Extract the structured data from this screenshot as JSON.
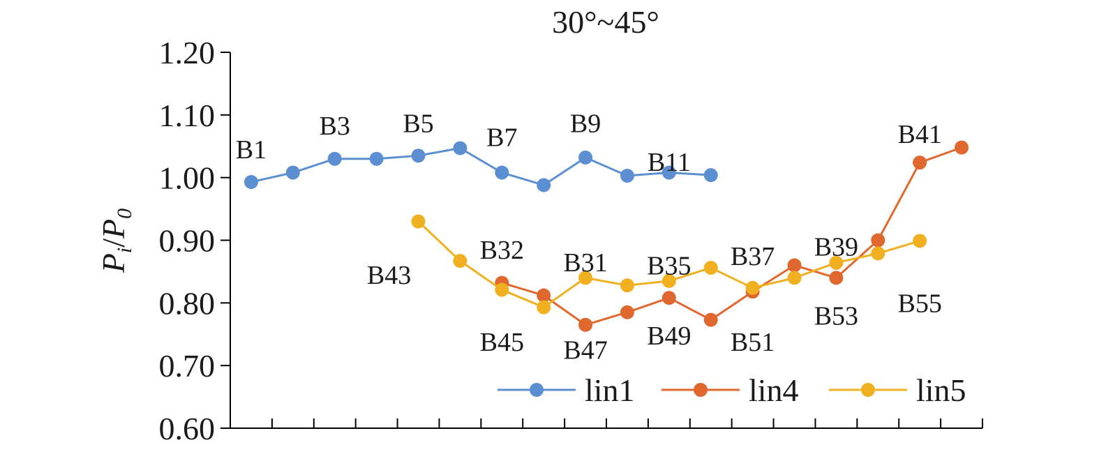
{
  "chart_data": {
    "type": "line",
    "title": "30°~45°",
    "ylabel": {
      "main": "P",
      "sub": "i",
      "slash": "/",
      "main2": "P",
      "sub2": "0"
    },
    "ylim": [
      0.6,
      1.2
    ],
    "yticks": [
      "0.60",
      "0.70",
      "0.80",
      "0.90",
      "1.00",
      "1.10",
      "1.20"
    ],
    "ytick_values": [
      0.6,
      0.7,
      0.8,
      0.9,
      1.0,
      1.1,
      1.2
    ],
    "xlim": [
      0,
      18
    ],
    "grid": false,
    "legend_position": "bottom-right",
    "series": [
      {
        "name": "lin1",
        "color": "#5b8fd1",
        "points": [
          {
            "x": 0.5,
            "y": 0.993
          },
          {
            "x": 1.5,
            "y": 1.008
          },
          {
            "x": 2.5,
            "y": 1.03
          },
          {
            "x": 3.5,
            "y": 1.03
          },
          {
            "x": 4.5,
            "y": 1.035
          },
          {
            "x": 5.5,
            "y": 1.047
          },
          {
            "x": 6.5,
            "y": 1.008
          },
          {
            "x": 7.5,
            "y": 0.988
          },
          {
            "x": 8.5,
            "y": 1.032
          },
          {
            "x": 9.5,
            "y": 1.003
          },
          {
            "x": 10.5,
            "y": 1.008
          },
          {
            "x": 11.5,
            "y": 1.004
          }
        ]
      },
      {
        "name": "lin4",
        "color": "#e0672e",
        "points": [
          {
            "x": 6.5,
            "y": 0.832
          },
          {
            "x": 7.5,
            "y": 0.812
          },
          {
            "x": 8.5,
            "y": 0.765
          },
          {
            "x": 9.5,
            "y": 0.785
          },
          {
            "x": 10.5,
            "y": 0.808
          },
          {
            "x": 11.5,
            "y": 0.773
          },
          {
            "x": 12.5,
            "y": 0.818
          },
          {
            "x": 13.5,
            "y": 0.86
          },
          {
            "x": 14.5,
            "y": 0.84
          },
          {
            "x": 15.5,
            "y": 0.9
          },
          {
            "x": 16.5,
            "y": 1.024
          },
          {
            "x": 17.5,
            "y": 1.048
          }
        ]
      },
      {
        "name": "lin5",
        "color": "#f0b020",
        "points": [
          {
            "x": 4.5,
            "y": 0.93
          },
          {
            "x": 5.5,
            "y": 0.867
          },
          {
            "x": 6.5,
            "y": 0.821
          },
          {
            "x": 7.5,
            "y": 0.793
          },
          {
            "x": 8.5,
            "y": 0.84
          },
          {
            "x": 9.5,
            "y": 0.828
          },
          {
            "x": 10.5,
            "y": 0.835
          },
          {
            "x": 11.5,
            "y": 0.856
          },
          {
            "x": 12.5,
            "y": 0.824
          },
          {
            "x": 13.5,
            "y": 0.84
          },
          {
            "x": 14.5,
            "y": 0.864
          },
          {
            "x": 15.5,
            "y": 0.879
          },
          {
            "x": 16.5,
            "y": 0.899
          }
        ]
      }
    ],
    "annotations": [
      {
        "text": "B1",
        "x": 0.5,
        "y": 1.045
      },
      {
        "text": "B3",
        "x": 2.5,
        "y": 1.083
      },
      {
        "text": "B5",
        "x": 4.5,
        "y": 1.087
      },
      {
        "text": "B7",
        "x": 6.5,
        "y": 1.065
      },
      {
        "text": "B9",
        "x": 8.5,
        "y": 1.087
      },
      {
        "text": "B11",
        "x": 10.5,
        "y": 1.025
      },
      {
        "text": "B41",
        "x": 16.5,
        "y": 1.07
      },
      {
        "text": "B43",
        "x": 3.8,
        "y": 0.845
      },
      {
        "text": "B32",
        "x": 6.5,
        "y": 0.885
      },
      {
        "text": "B31",
        "x": 8.5,
        "y": 0.865
      },
      {
        "text": "B35",
        "x": 10.5,
        "y": 0.86
      },
      {
        "text": "B37",
        "x": 12.5,
        "y": 0.875
      },
      {
        "text": "B39",
        "x": 14.5,
        "y": 0.89
      },
      {
        "text": "B45",
        "x": 6.5,
        "y": 0.738
      },
      {
        "text": "B47",
        "x": 8.5,
        "y": 0.725
      },
      {
        "text": "B49",
        "x": 10.5,
        "y": 0.748
      },
      {
        "text": "B51",
        "x": 12.5,
        "y": 0.738
      },
      {
        "text": "B53",
        "x": 14.5,
        "y": 0.78
      },
      {
        "text": "B55",
        "x": 16.5,
        "y": 0.8
      }
    ]
  }
}
